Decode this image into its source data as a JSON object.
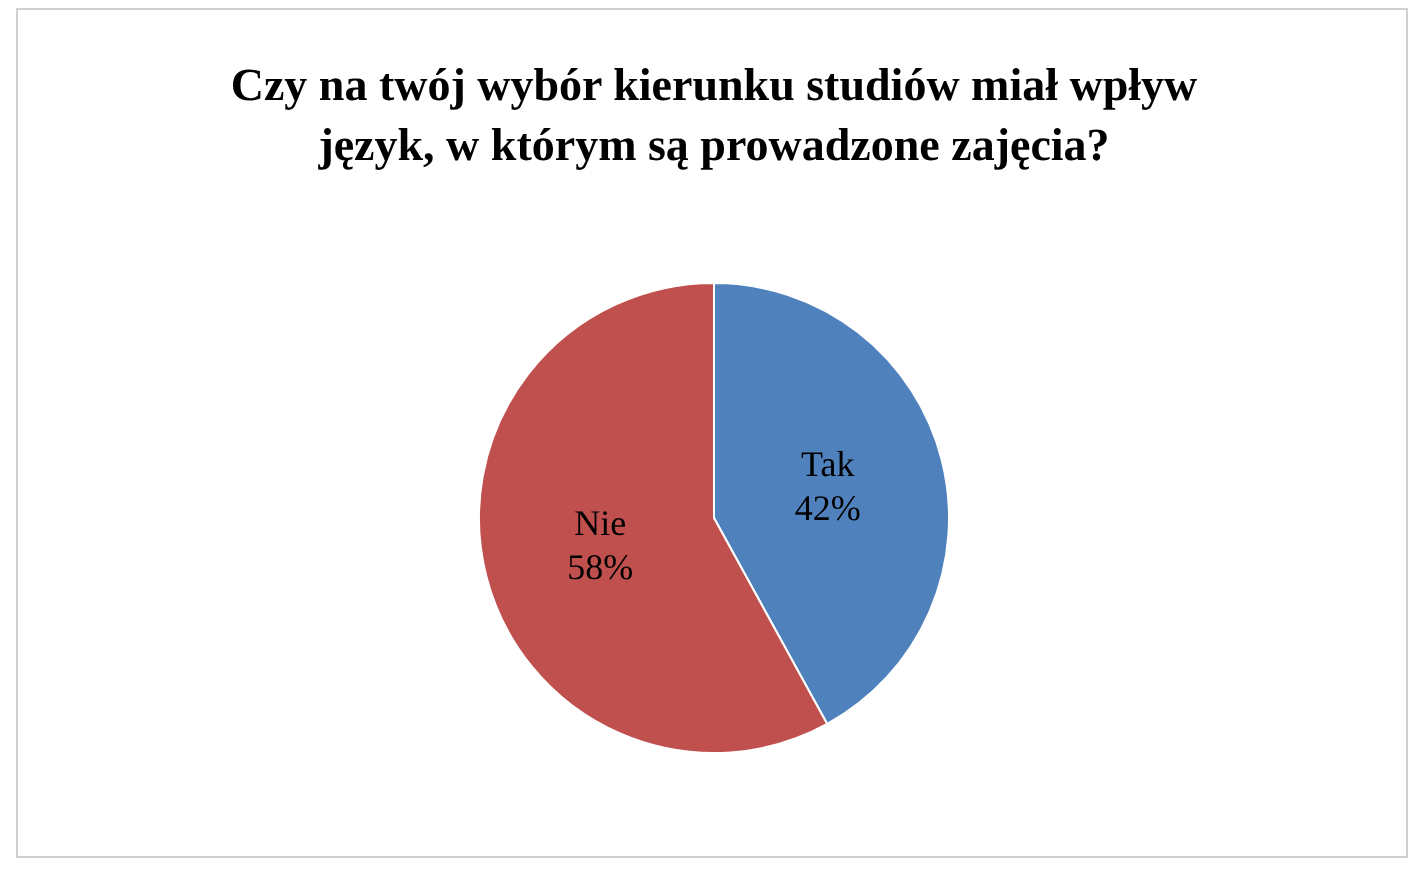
{
  "chart_data": {
    "type": "pie",
    "title": "Czy na twój wybór kierunku studiów miał wpływ język, w którym są prowadzone zajęcia?",
    "categories": [
      "Tak",
      "Nie"
    ],
    "values": [
      42,
      58
    ],
    "value_labels": [
      "42%",
      "58%"
    ],
    "colors": [
      "#4f81bd",
      "#c0504d"
    ],
    "legend": false
  }
}
